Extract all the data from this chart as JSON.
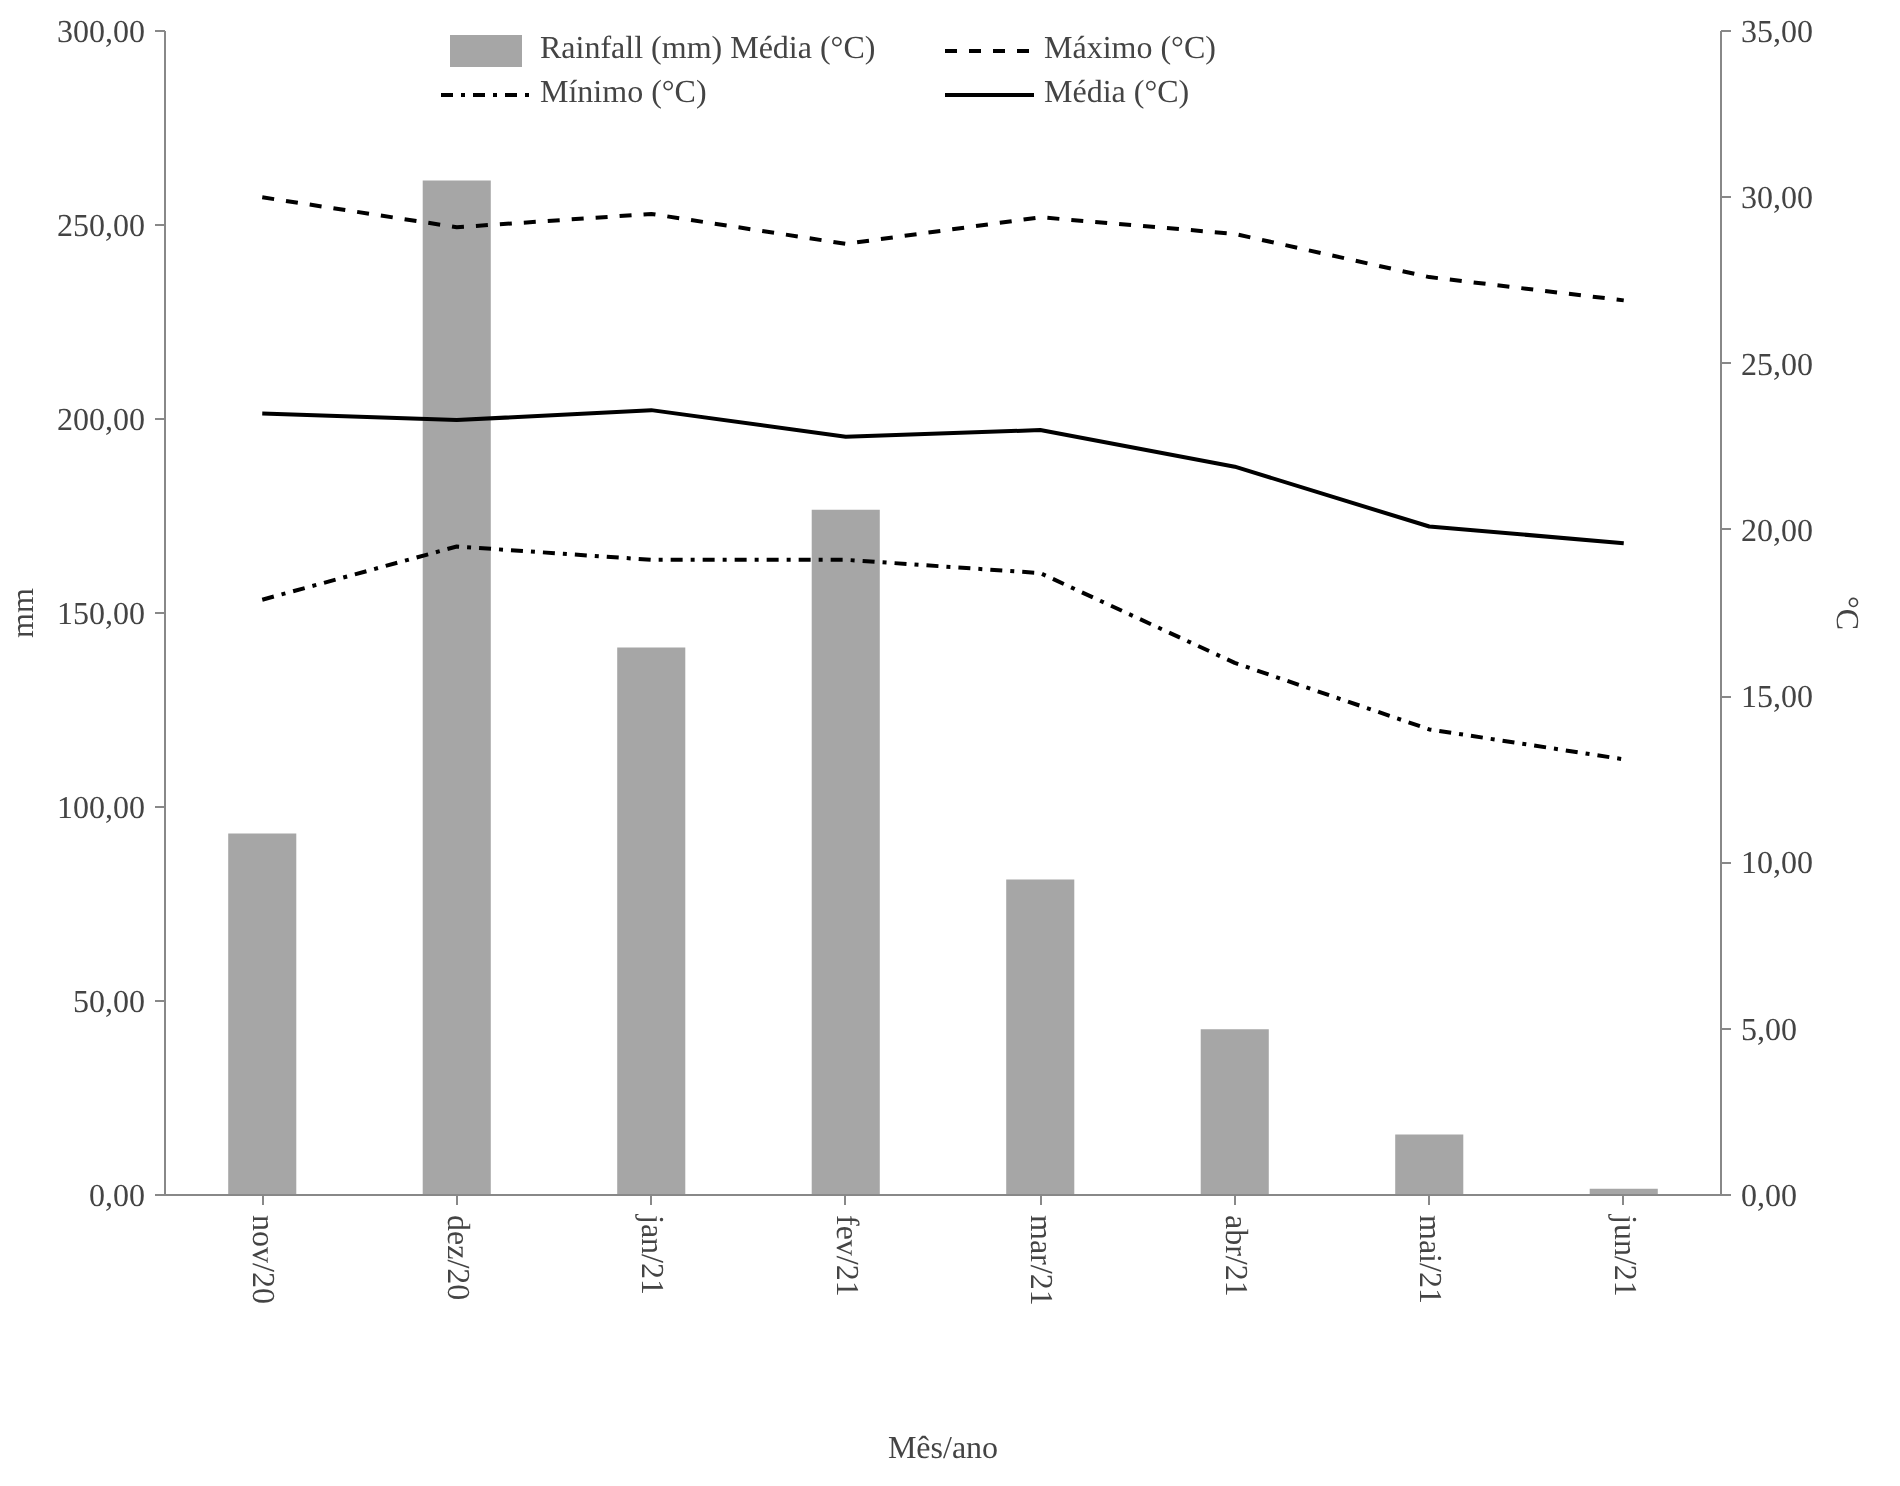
{
  "chart_data": {
    "type": "bar",
    "categories": [
      "nov/20",
      "dez/20",
      "jan/21",
      "fev/21",
      "mar/21",
      "abr/21",
      "mai/21",
      "jun/21"
    ],
    "xlabel": "Mês/ano",
    "ylabel": "mm",
    "y2label": "°C",
    "series": [
      {
        "name": "Rainfall (mm) Média (°C)",
        "color": "#a6a6a6",
        "values": [
          93.2,
          261.5,
          141.1,
          176.6,
          81.3,
          42.7,
          15.6,
          1.6
        ]
      },
      {
        "name": "Máximo (°C)",
        "type": "line",
        "axis": "y2",
        "color": "#000000",
        "line_style": "dashed",
        "values": [
          30.0,
          29.1,
          29.5,
          28.6,
          29.4,
          28.9,
          27.6,
          26.9
        ]
      },
      {
        "name": "Mínimo (°C)",
        "type": "line",
        "axis": "y2",
        "color": "#000000",
        "line_style": "dashdot",
        "values": [
          17.9,
          19.5,
          19.1,
          19.1,
          18.7,
          16.0,
          14.0,
          13.1
        ]
      },
      {
        "name": "Média (°C)",
        "type": "line",
        "axis": "y2",
        "color": "#000000",
        "line_style": "solid",
        "values": [
          23.5,
          23.3,
          23.6,
          22.8,
          23.0,
          21.9,
          20.1,
          19.6
        ]
      }
    ],
    "ylim": [
      0,
      300
    ],
    "yticks": [
      {
        "value": 0,
        "label": "0,00"
      },
      {
        "value": 50,
        "label": "50,00"
      },
      {
        "value": 100,
        "label": "100,00"
      },
      {
        "value": 150,
        "label": "150,00"
      },
      {
        "value": 200,
        "label": "200,00"
      },
      {
        "value": 250,
        "label": "250,00"
      },
      {
        "value": 300,
        "label": "300,00"
      }
    ],
    "y2lim": [
      0,
      35
    ],
    "y2ticks": [
      {
        "value": 0,
        "label": "0,00"
      },
      {
        "value": 5,
        "label": "5,00"
      },
      {
        "value": 10,
        "label": "10,00"
      },
      {
        "value": 15,
        "label": "15,00"
      },
      {
        "value": 20,
        "label": "20,00"
      },
      {
        "value": 25,
        "label": "25,00"
      },
      {
        "value": 30,
        "label": "30,00"
      },
      {
        "value": 35,
        "label": "35,00"
      }
    ],
    "grid": false,
    "legend": "top",
    "marker": "none"
  }
}
